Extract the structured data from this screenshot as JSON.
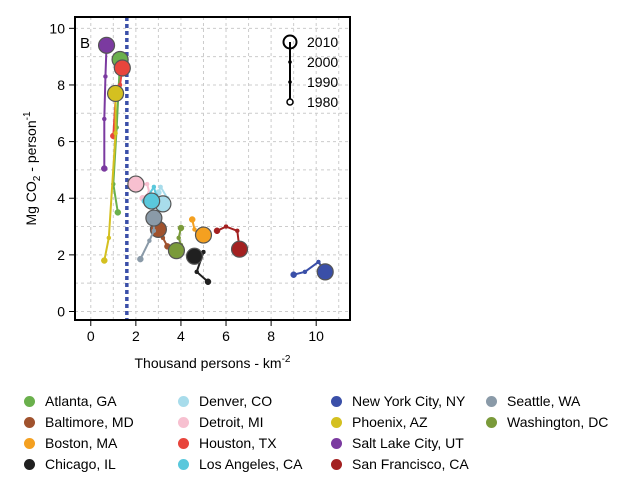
{
  "chart_data": {
    "type": "scatter",
    "panel_label": "B",
    "xlabel": "Thousand persons - km",
    "xlabel_superscript": "-2",
    "ylabel_main": "Mg CO",
    "ylabel_subscript": "2",
    "ylabel_rest": " - person",
    "ylabel_superscript": "-1",
    "xlim": [
      -0.7,
      11.5
    ],
    "ylim": [
      -0.3,
      10.4
    ],
    "xticks": [
      0,
      2,
      4,
      6,
      8,
      10
    ],
    "yticks": [
      0,
      2,
      4,
      6,
      8,
      10
    ],
    "grid": true,
    "reference_line_x": 1.6,
    "year_legend": [
      "2010",
      "2000",
      "1990",
      "1980"
    ],
    "series": [
      {
        "name": "Atlanta, GA",
        "color": "#6ab04c",
        "points": [
          [
            1.2,
            3.5
          ],
          [
            1.0,
            4.5
          ],
          [
            1.15,
            6.5
          ],
          [
            1.3,
            8.9
          ]
        ]
      },
      {
        "name": "Baltimore, MD",
        "color": "#a0522d",
        "points": [
          [
            3.4,
            2.3
          ],
          [
            3.2,
            2.6
          ],
          [
            3.0,
            3.1
          ],
          [
            3.0,
            2.9
          ]
        ]
      },
      {
        "name": "Boston, MA",
        "color": "#f4a020",
        "points": [
          [
            4.5,
            3.25
          ],
          [
            4.6,
            2.9
          ],
          [
            4.9,
            2.5
          ],
          [
            5.0,
            2.7
          ]
        ]
      },
      {
        "name": "Chicago, IL",
        "color": "#202020",
        "points": [
          [
            5.2,
            1.05
          ],
          [
            4.7,
            1.4
          ],
          [
            5.0,
            2.1
          ],
          [
            4.6,
            1.95
          ]
        ]
      },
      {
        "name": "Denver, CO",
        "color": "#a8dceb",
        "points": [
          [
            3.0,
            4.2
          ],
          [
            3.1,
            4.4
          ],
          [
            3.4,
            4.0
          ],
          [
            3.2,
            3.8
          ]
        ]
      },
      {
        "name": "Detroit, MI",
        "color": "#f7c0d0",
        "points": [
          [
            2.3,
            4.0
          ],
          [
            2.6,
            4.2
          ],
          [
            2.5,
            4.5
          ],
          [
            2.0,
            4.5
          ]
        ]
      },
      {
        "name": "Houston, TX",
        "color": "#e8453c",
        "points": [
          [
            1.0,
            6.2
          ],
          [
            1.1,
            7.5
          ],
          [
            1.3,
            8.0
          ],
          [
            1.4,
            8.6
          ]
        ]
      },
      {
        "name": "Los Angeles, CA",
        "color": "#5ac8dc",
        "points": [
          [
            2.4,
            3.9
          ],
          [
            2.8,
            4.4
          ],
          [
            2.9,
            4.1
          ],
          [
            2.7,
            3.9
          ]
        ]
      },
      {
        "name": "New York City, NY",
        "color": "#3a4fa8",
        "points": [
          [
            9.0,
            1.3
          ],
          [
            9.5,
            1.4
          ],
          [
            10.1,
            1.75
          ],
          [
            10.4,
            1.4
          ]
        ]
      },
      {
        "name": "Phoenix, AZ",
        "color": "#d4c020",
        "points": [
          [
            0.6,
            1.8
          ],
          [
            0.8,
            2.6
          ],
          [
            1.1,
            6.3
          ],
          [
            1.1,
            7.7
          ]
        ]
      },
      {
        "name": "Salt Lake City, UT",
        "color": "#7b3aa0",
        "points": [
          [
            0.6,
            5.05
          ],
          [
            0.6,
            6.8
          ],
          [
            0.65,
            8.3
          ],
          [
            0.7,
            9.4
          ]
        ]
      },
      {
        "name": "San Francisco, CA",
        "color": "#a32020",
        "points": [
          [
            5.6,
            2.85
          ],
          [
            6.0,
            3.0
          ],
          [
            6.5,
            2.85
          ],
          [
            6.6,
            2.2
          ]
        ]
      },
      {
        "name": "Seattle, WA",
        "color": "#8a9aa8",
        "points": [
          [
            2.2,
            1.85
          ],
          [
            2.6,
            2.5
          ],
          [
            2.8,
            2.85
          ],
          [
            2.8,
            3.3
          ]
        ]
      },
      {
        "name": "Washington, DC",
        "color": "#7a9a3a",
        "points": [
          [
            4.0,
            2.95
          ],
          [
            3.9,
            2.6
          ],
          [
            4.0,
            2.35
          ],
          [
            3.8,
            2.15
          ]
        ]
      }
    ]
  }
}
